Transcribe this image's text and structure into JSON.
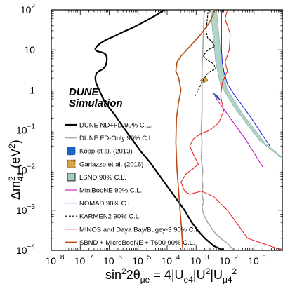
{
  "chart_data": {
    "type": "line",
    "title": "",
    "xlabel": "sin²2θμe = 4|Ue₄|²|Uμ₄|²",
    "xlabel_parts": {
      "main": "sin",
      "sup1": "2",
      "rest": "2θ",
      "sub": "μe",
      "eq": " = 4|U",
      "sub2": "e4",
      "sup2": "2",
      "mid": "|U",
      "sub3": "μ4",
      "sup3": "2"
    },
    "ylabel_parts": {
      "main": "Δm",
      "sup": "2",
      "sub": "41",
      "unit": " (eV",
      "unitsup": "2",
      "close": ")"
    },
    "x_scale": "log",
    "y_scale": "log",
    "xlim": [
      1e-08,
      1
    ],
    "ylim": [
      0.0001,
      100
    ],
    "x_ticks": [
      {
        "v": 1e-08,
        "main": "10",
        "exp": "−8"
      },
      {
        "v": 1e-07,
        "main": "10",
        "exp": "−7"
      },
      {
        "v": 1e-06,
        "main": "10",
        "exp": "−6"
      },
      {
        "v": 1e-05,
        "main": "10",
        "exp": "−5"
      },
      {
        "v": 0.0001,
        "main": "10",
        "exp": "−4"
      },
      {
        "v": 0.001,
        "main": "10",
        "exp": "−3"
      },
      {
        "v": 0.01,
        "main": "10",
        "exp": "−2"
      },
      {
        "v": 0.1,
        "main": "10",
        "exp": "−1"
      }
    ],
    "y_ticks": [
      {
        "v": 0.0001,
        "main": "10",
        "exp": "−4"
      },
      {
        "v": 0.001,
        "main": "10",
        "exp": "−3"
      },
      {
        "v": 0.01,
        "main": "10",
        "exp": "−2"
      },
      {
        "v": 0.1,
        "main": "10",
        "exp": "−1"
      },
      {
        "v": 1,
        "main": "1",
        "exp": ""
      },
      {
        "v": 10,
        "main": "10",
        "exp": ""
      },
      {
        "v": 100,
        "main": "10",
        "exp": "2"
      }
    ],
    "annotation": [
      "DUNE",
      "Simulation"
    ],
    "series": [
      {
        "name": "DUNE ND+FD 90% C.L.",
        "color": "#000000",
        "width": 2.2,
        "dash": "",
        "points": [
          [
            0.009,
            0.0001
          ],
          [
            0.004,
            0.00013
          ],
          [
            0.002,
            0.0002
          ],
          [
            0.0012,
            0.0003
          ],
          [
            0.0007,
            0.0005
          ],
          [
            0.0004,
            0.001
          ],
          [
            0.0002,
            0.002
          ],
          [
            0.0001,
            0.004
          ],
          [
            5e-05,
            0.008
          ],
          [
            2.5e-05,
            0.016
          ],
          [
            1.2e-05,
            0.03
          ],
          [
            6e-06,
            0.06
          ],
          [
            3e-06,
            0.12
          ],
          [
            1.5e-06,
            0.25
          ],
          [
            7e-07,
            0.5
          ],
          [
            4.5e-07,
            1.0
          ],
          [
            3.5e-07,
            1.5
          ],
          [
            3.3e-07,
            2.0
          ],
          [
            3.6e-07,
            2.6
          ],
          [
            4.5e-07,
            3.0
          ],
          [
            6e-07,
            3.3
          ],
          [
            7.5e-07,
            4.0
          ],
          [
            8.2e-07,
            5.0
          ],
          [
            8.3e-07,
            6.5
          ],
          [
            7.5e-07,
            7.8
          ],
          [
            6e-07,
            8.6
          ],
          [
            4.5e-07,
            9.0
          ],
          [
            3.6e-07,
            9.4
          ],
          [
            3.3e-07,
            10.5
          ],
          [
            3.8e-07,
            12.5
          ],
          [
            5.2e-07,
            15
          ],
          [
            8e-07,
            18
          ],
          [
            1.5e-06,
            22
          ],
          [
            3e-06,
            28
          ],
          [
            6e-06,
            35
          ],
          [
            1.2e-05,
            45
          ],
          [
            2.5e-05,
            60
          ],
          [
            5e-05,
            80
          ],
          [
            8e-05,
            100
          ]
        ]
      },
      {
        "name": "DUNE FD-Only 90% C.L.",
        "color": "#aaaaaa",
        "width": 1.6,
        "dash": "",
        "points": [
          [
            0.02,
            0.0001
          ],
          [
            0.012,
            0.00015
          ],
          [
            0.007,
            0.0002
          ],
          [
            0.004,
            0.0003
          ],
          [
            0.0025,
            0.0005
          ],
          [
            0.0018,
            0.0008
          ],
          [
            0.0016,
            0.0012
          ],
          [
            0.0018,
            0.0016
          ],
          [
            0.0016,
            0.0025
          ],
          [
            0.0017,
            0.004
          ],
          [
            0.0016,
            0.006
          ],
          [
            0.0017,
            0.01
          ],
          [
            0.0015,
            0.02
          ],
          [
            0.0016,
            0.05
          ],
          [
            0.0015,
            0.1
          ],
          [
            0.0016,
            0.3
          ],
          [
            0.0016,
            1.0
          ],
          [
            0.0016,
            3.0
          ],
          [
            0.0017,
            10
          ],
          [
            0.0018,
            30
          ],
          [
            0.0019,
            100
          ]
        ]
      },
      {
        "name": "KARMEN2 90% C.L.",
        "color": "#000000",
        "width": 1.1,
        "dash": "3,2",
        "points": [
          [
            0.0009,
            0.7
          ],
          [
            0.0012,
            1.0
          ],
          [
            0.0016,
            1.6
          ],
          [
            0.0023,
            2.4
          ],
          [
            0.0032,
            3.0
          ],
          [
            0.0048,
            3.3
          ],
          [
            0.004,
            4.5
          ],
          [
            0.0025,
            5.5
          ],
          [
            0.0018,
            7.0
          ],
          [
            0.0022,
            9.0
          ],
          [
            0.0032,
            11
          ],
          [
            0.0045,
            12
          ],
          [
            0.0035,
            16
          ],
          [
            0.0025,
            20
          ],
          [
            0.0022,
            30
          ],
          [
            0.0024,
            50
          ],
          [
            0.0026,
            100
          ]
        ]
      },
      {
        "name": "NOMAD 90% C.L.",
        "color": "#1111dd",
        "width": 1.0,
        "dash": "",
        "points": [
          [
            0.35,
            0.04
          ],
          [
            0.15,
            0.1
          ],
          [
            0.08,
            0.2
          ],
          [
            0.04,
            0.4
          ],
          [
            0.02,
            0.8
          ],
          [
            0.012,
            1.4
          ],
          [
            0.009,
            3.0
          ],
          [
            0.008,
            5.0
          ],
          [
            0.0075,
            10
          ],
          [
            0.0075,
            20
          ],
          [
            0.0075,
            100
          ]
        ]
      },
      {
        "name": "MiniBooNE 90% C.L.",
        "color": "#bb00bb",
        "width": 1.0,
        "dash": "",
        "points": [
          [
            0.2,
            0.012
          ],
          [
            0.05,
            0.06
          ],
          [
            0.02,
            0.15
          ],
          [
            0.01,
            0.3
          ],
          [
            0.006,
            0.5
          ],
          [
            0.0045,
            0.7
          ]
        ]
      },
      {
        "name": "MINOS and Daya Bay/Bugey-3 90% C.L.",
        "color": "#ee1111",
        "width": 1.0,
        "dash": "",
        "points": [
          [
            1.0,
            0.0001
          ],
          [
            0.06,
            0.0002
          ],
          [
            0.03,
            0.0004
          ],
          [
            0.012,
            0.001
          ],
          [
            0.004,
            0.0022
          ],
          [
            0.0015,
            0.003
          ],
          [
            0.0006,
            0.0025
          ],
          [
            0.0004,
            0.003
          ],
          [
            0.0003,
            0.005
          ],
          [
            0.00045,
            0.008
          ],
          [
            0.0008,
            0.011
          ],
          [
            0.0012,
            0.014
          ],
          [
            0.0008,
            0.025
          ],
          [
            0.0006,
            0.04
          ],
          [
            0.0008,
            0.06
          ],
          [
            0.0014,
            0.08
          ],
          [
            0.003,
            0.1
          ],
          [
            0.006,
            0.15
          ],
          [
            0.009,
            0.3
          ],
          [
            0.007,
            0.7
          ],
          [
            0.008,
            1.5
          ],
          [
            0.012,
            3.0
          ],
          [
            0.01,
            5.0
          ],
          [
            0.014,
            10
          ],
          [
            0.015,
            25
          ],
          [
            0.01,
            60
          ],
          [
            0.012,
            100
          ]
        ]
      },
      {
        "name": "SBND + MicroBooNE + T600 90% C.L.",
        "color": "#b84a10",
        "width": 1.6,
        "dash": "",
        "points": [
          [
            0.00035,
            0.0001
          ],
          [
            0.00032,
            0.0003
          ],
          [
            0.00028,
            0.001
          ],
          [
            0.00025,
            0.003
          ],
          [
            0.00022,
            0.01
          ],
          [
            0.0002,
            0.05
          ],
          [
            0.00021,
            0.2
          ],
          [
            0.00025,
            0.5
          ],
          [
            0.0003,
            1.0
          ],
          [
            0.00025,
            2.0
          ],
          [
            0.0002,
            3.0
          ],
          [
            0.00022,
            5.0
          ],
          [
            0.0003,
            7.0
          ],
          [
            0.0006,
            12
          ],
          [
            0.0015,
            25
          ],
          [
            0.003,
            50
          ],
          [
            0.0045,
            100
          ]
        ]
      },
      {
        "name": "Kopp et al. (2013)",
        "color": "#1a66cc",
        "width": 0,
        "dash": "",
        "points": [
          [
            0.0045,
            0.78
          ],
          [
            0.005,
            0.7
          ],
          [
            0.006,
            0.6
          ]
        ]
      },
      {
        "name": "Gariazzo et al. (2016)",
        "color": "#d9a441",
        "width": 0,
        "dash": "",
        "points": [
          [
            0.0018,
            1.75
          ],
          [
            0.002,
            1.8
          ]
        ]
      },
      {
        "name": "LSND 90% C.L.",
        "color": "#a3ccc0",
        "width": 0,
        "dash": "",
        "points": [
          [
            0.004,
            100
          ],
          [
            0.0047,
            30
          ],
          [
            0.006,
            5
          ],
          [
            0.009,
            1.2
          ],
          [
            0.03,
            0.3
          ],
          [
            0.2,
            0.05
          ],
          [
            1.0,
            0.02
          ]
        ]
      }
    ],
    "legend_position": "left"
  }
}
